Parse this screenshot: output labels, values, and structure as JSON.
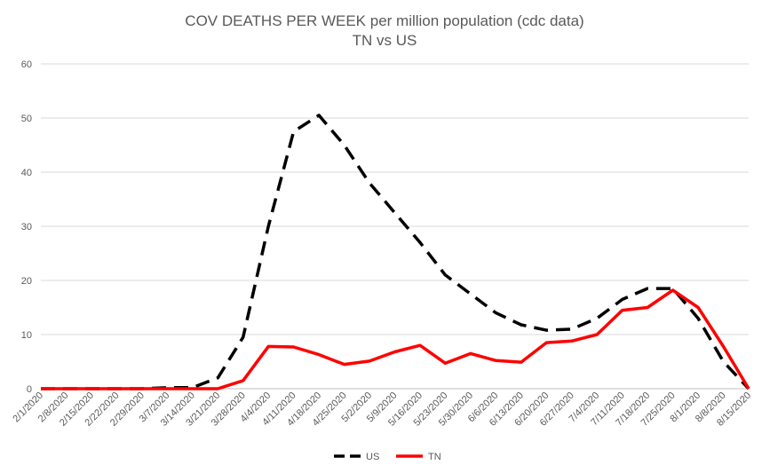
{
  "chart_data": {
    "type": "line",
    "title": "COV DEATHS PER WEEK per million population (cdc data)",
    "subtitle": "TN vs US",
    "xlabel": "",
    "ylabel": "",
    "ylim": [
      0,
      60
    ],
    "yticks": [
      0,
      10,
      20,
      30,
      40,
      50,
      60
    ],
    "grid": true,
    "legend_position": "bottom",
    "categories": [
      "2/1/2020",
      "2/8/2020",
      "2/15/2020",
      "2/22/2020",
      "2/29/2020",
      "3/7/2020",
      "3/14/2020",
      "3/21/2020",
      "3/28/2020",
      "4/4/2020",
      "4/11/2020",
      "4/18/2020",
      "4/25/2020",
      "5/2/2020",
      "5/9/2020",
      "5/16/2020",
      "5/23/2020",
      "5/30/2020",
      "6/6/2020",
      "6/13/2020",
      "6/20/2020",
      "6/27/2020",
      "7/4/2020",
      "7/11/2020",
      "7/18/2020",
      "7/25/2020",
      "8/1/2020",
      "8/8/2020",
      "8/15/2020"
    ],
    "series": [
      {
        "name": "US",
        "color": "#000000",
        "style": "dashed",
        "values": [
          0,
          0,
          0,
          0,
          0,
          0.2,
          0.2,
          2,
          9.5,
          30,
          47.5,
          50.5,
          45,
          38,
          32.5,
          27,
          21,
          17.5,
          14,
          11.8,
          10.8,
          11,
          13,
          16.5,
          18.5,
          18.5,
          13,
          5,
          0
        ]
      },
      {
        "name": "TN",
        "color": "#ff0000",
        "style": "solid",
        "values": [
          0,
          0,
          0,
          0,
          0,
          0,
          0,
          0,
          1.5,
          7.8,
          7.7,
          6.3,
          4.5,
          5.1,
          6.8,
          8.0,
          4.7,
          6.5,
          5.2,
          4.9,
          8.5,
          8.8,
          10.0,
          14.5,
          15.0,
          18.2,
          15.0,
          7.8,
          0
        ]
      }
    ]
  }
}
